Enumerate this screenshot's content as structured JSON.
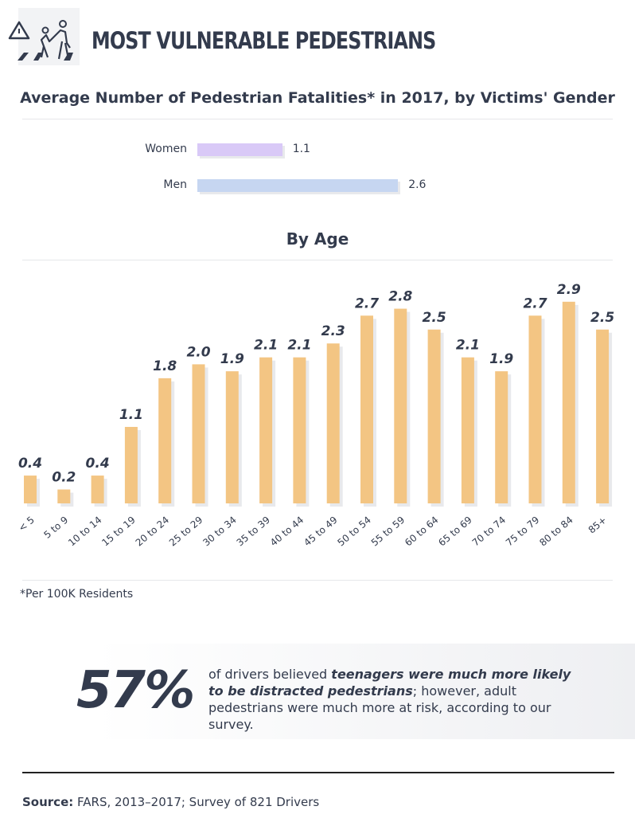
{
  "header": {
    "title": "MOST VULNERABLE PEDESTRIANS",
    "icon": "pedestrian-crossing-warning-icon"
  },
  "colors": {
    "text": "#333b4d",
    "women": "#d9c9f7",
    "men": "#c6d6f1",
    "age_bar": "#f3c583",
    "shadow": "#e8e9ec"
  },
  "chart_data": [
    {
      "type": "bar",
      "orientation": "horizontal",
      "title": "Average Number of Pedestrian Fatalities* in 2017, by Victims' Gender",
      "categories": [
        "Women",
        "Men"
      ],
      "values": [
        1.1,
        2.6
      ]
    },
    {
      "type": "bar",
      "title": "By Age",
      "categories": [
        "< 5",
        "5 to 9",
        "10 to 14",
        "15 to 19",
        "20 to 24",
        "25 to 29",
        "30 to 34",
        "35 to 39",
        "40 to 44",
        "45 to 49",
        "50 to 54",
        "55 to 59",
        "60 to 64",
        "65 to 69",
        "70 to 74",
        "75 to 79",
        "80 to 84",
        "85+"
      ],
      "values": [
        0.4,
        0.2,
        0.4,
        1.1,
        1.8,
        2.0,
        1.9,
        2.1,
        2.1,
        2.3,
        2.7,
        2.8,
        2.5,
        2.1,
        1.9,
        2.7,
        2.9,
        2.5
      ],
      "labels": [
        "0.4",
        "0.2",
        "0.4",
        "1.1",
        "1.8",
        "2.0",
        "1.9",
        "2.1",
        "2.1",
        "2.3",
        "2.7",
        "2.8",
        "2.5",
        "2.1",
        "1.9",
        "2.7",
        "2.9",
        "2.5"
      ]
    }
  ],
  "footnote": "*Per 100K Residents",
  "callout": {
    "stat": "57%",
    "text_pre": "of drivers believed ",
    "text_bold": "teenagers were much more likely to be distracted pedestrians",
    "text_post": "; however, adult pedestrians were much more at risk, according to our survey."
  },
  "source": {
    "label": "Source:",
    "text": " FARS, 2013–2017; Survey of 821 Drivers"
  }
}
